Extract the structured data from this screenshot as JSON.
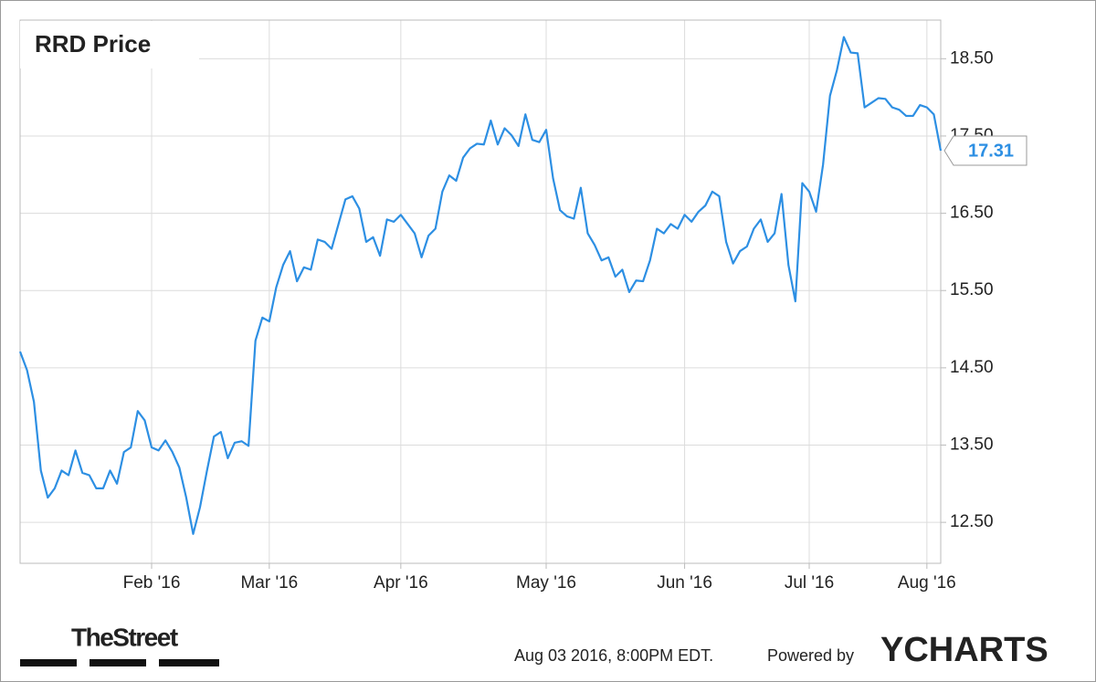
{
  "chart_data": {
    "type": "line",
    "title": "RRD Price",
    "color": "#2d8fe3",
    "values": [
      14.71,
      14.47,
      14.06,
      13.17,
      12.82,
      12.94,
      13.17,
      13.11,
      13.43,
      13.14,
      13.11,
      12.94,
      12.94,
      13.17,
      13.0,
      13.41,
      13.47,
      13.94,
      13.82,
      13.47,
      13.43,
      13.56,
      13.41,
      13.21,
      12.82,
      12.35,
      12.7,
      13.17,
      13.61,
      13.67,
      13.33,
      13.53,
      13.55,
      13.49,
      14.85,
      15.15,
      15.1,
      15.54,
      15.83,
      16.01,
      15.62,
      15.8,
      15.77,
      16.16,
      16.13,
      16.04,
      16.36,
      16.68,
      16.72,
      16.56,
      16.13,
      16.19,
      15.95,
      16.42,
      16.39,
      16.48,
      16.36,
      16.24,
      15.93,
      16.21,
      16.3,
      16.78,
      16.99,
      16.92,
      17.22,
      17.34,
      17.4,
      17.39,
      17.7,
      17.39,
      17.6,
      17.51,
      17.37,
      17.78,
      17.45,
      17.42,
      17.58,
      16.95,
      16.54,
      16.46,
      16.43,
      16.83,
      16.24,
      16.09,
      15.89,
      15.93,
      15.68,
      15.77,
      15.48,
      15.63,
      15.62,
      15.89,
      16.3,
      16.24,
      16.36,
      16.3,
      16.48,
      16.39,
      16.52,
      16.6,
      16.78,
      16.72,
      16.13,
      15.85,
      16.01,
      16.07,
      16.3,
      16.42,
      16.13,
      16.24,
      16.75,
      15.83,
      15.36,
      16.89,
      16.78,
      16.52,
      17.13,
      18.02,
      18.35,
      18.78,
      18.58,
      18.57,
      17.87,
      17.93,
      17.99,
      17.98,
      17.87,
      17.84,
      17.76,
      17.76,
      17.9,
      17.87,
      17.78,
      17.31
    ],
    "xlim": [
      0,
      133
    ],
    "xticks": [
      {
        "value": 19,
        "label": "Feb '16"
      },
      {
        "value": 36,
        "label": "Mar '16"
      },
      {
        "value": 55,
        "label": "Apr '16"
      },
      {
        "value": 76,
        "label": "May '16"
      },
      {
        "value": 96,
        "label": "Jun '16"
      },
      {
        "value": 114,
        "label": "Jul '16"
      },
      {
        "value": 131,
        "label": "Aug '16"
      }
    ],
    "ylim": [
      11.97,
      19.0
    ],
    "yticks": [
      {
        "value": 12.5,
        "label": "12.50"
      },
      {
        "value": 13.5,
        "label": "13.50"
      },
      {
        "value": 14.5,
        "label": "14.50"
      },
      {
        "value": 15.5,
        "label": "15.50"
      },
      {
        "value": 16.5,
        "label": "16.50"
      },
      {
        "value": 17.5,
        "label": "17.50"
      },
      {
        "value": 18.5,
        "label": "18.50"
      }
    ],
    "grid": true,
    "logo": "TheStreet",
    "timestamp": "Aug 03 2016, 8:00PM EDT.",
    "powered_by": "Powered by",
    "brand": "YCHARTS"
  }
}
